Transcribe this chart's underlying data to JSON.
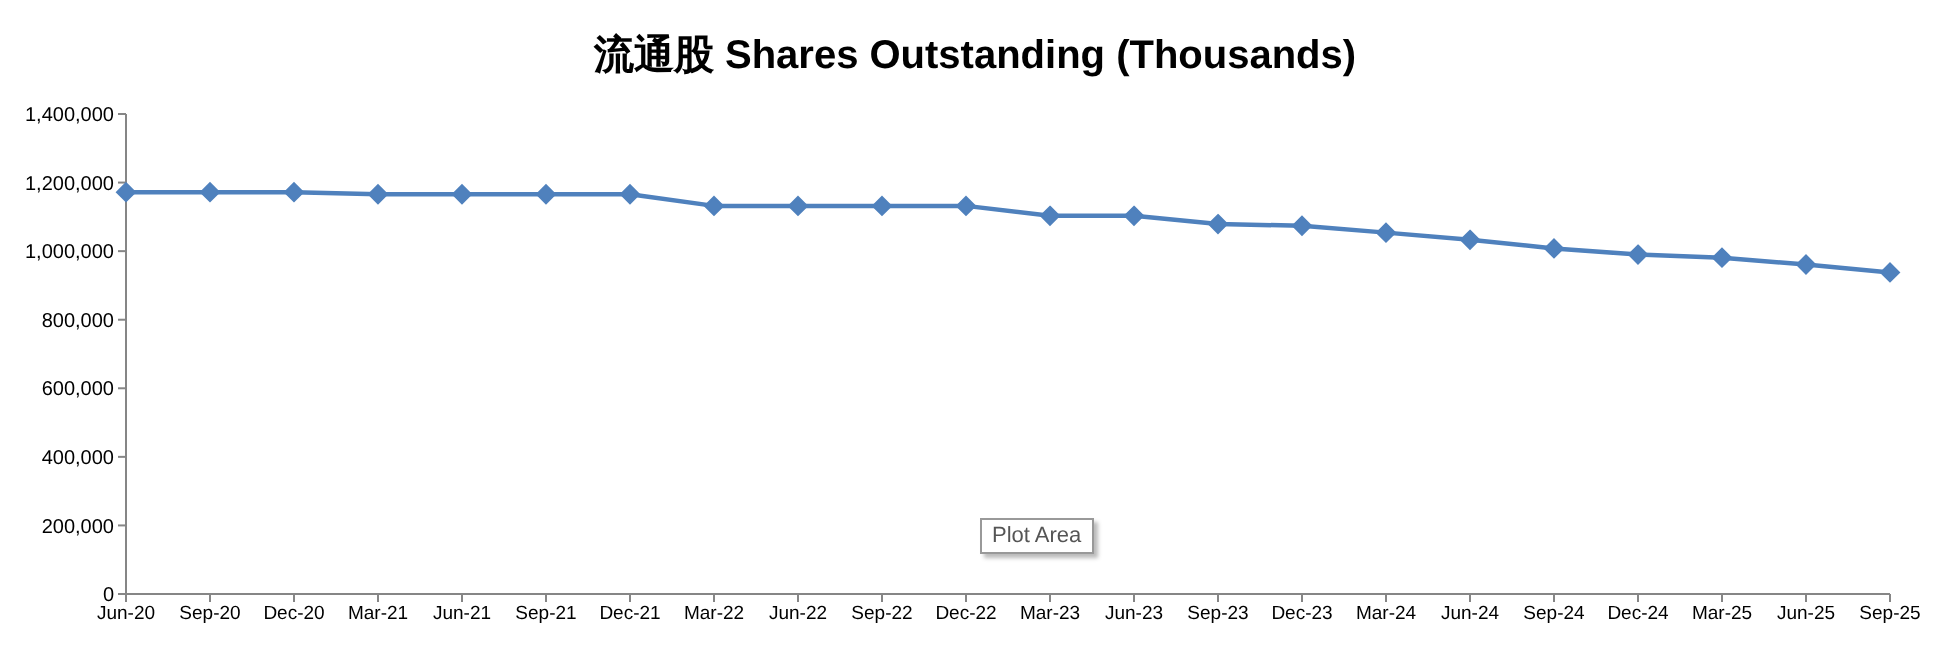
{
  "chart_data": {
    "type": "line",
    "title": "流通股 Shares Outstanding (Thousands)",
    "categories": [
      "Jun-20",
      "Sep-20",
      "Dec-20",
      "Mar-21",
      "Jun-21",
      "Sep-21",
      "Dec-21",
      "Mar-22",
      "Jun-22",
      "Sep-22",
      "Dec-22",
      "Mar-23",
      "Jun-23",
      "Sep-23",
      "Dec-23",
      "Mar-24",
      "Jun-24",
      "Sep-24",
      "Dec-24",
      "Mar-25",
      "Jun-25",
      "Sep-25"
    ],
    "series": [
      {
        "color": "#4f81bd",
        "values": [
          1172000,
          1172000,
          1172000,
          1166000,
          1166000,
          1166000,
          1166000,
          1132000,
          1132000,
          1132000,
          1132000,
          1103000,
          1103000,
          1079000,
          1074000,
          1054000,
          1033000,
          1008000,
          990000,
          981000,
          961000,
          938000
        ]
      }
    ],
    "ylim": [
      0,
      1400000
    ],
    "yticks": [
      0,
      {
        "value": 200000,
        "label": "200,000"
      },
      {
        "value": 400000,
        "label": "400,000"
      },
      {
        "value": 600000,
        "label": "600,000"
      },
      {
        "value": 800000,
        "label": "800,000"
      },
      {
        "value": 1000000,
        "label": "1,000,000"
      },
      {
        "value": 1200000,
        "label": "1,200,000"
      },
      {
        "value": 1400000,
        "label": "1,400,000"
      }
    ],
    "marker": "diamond",
    "grid": false,
    "annotations": [
      "Plot Area"
    ]
  }
}
